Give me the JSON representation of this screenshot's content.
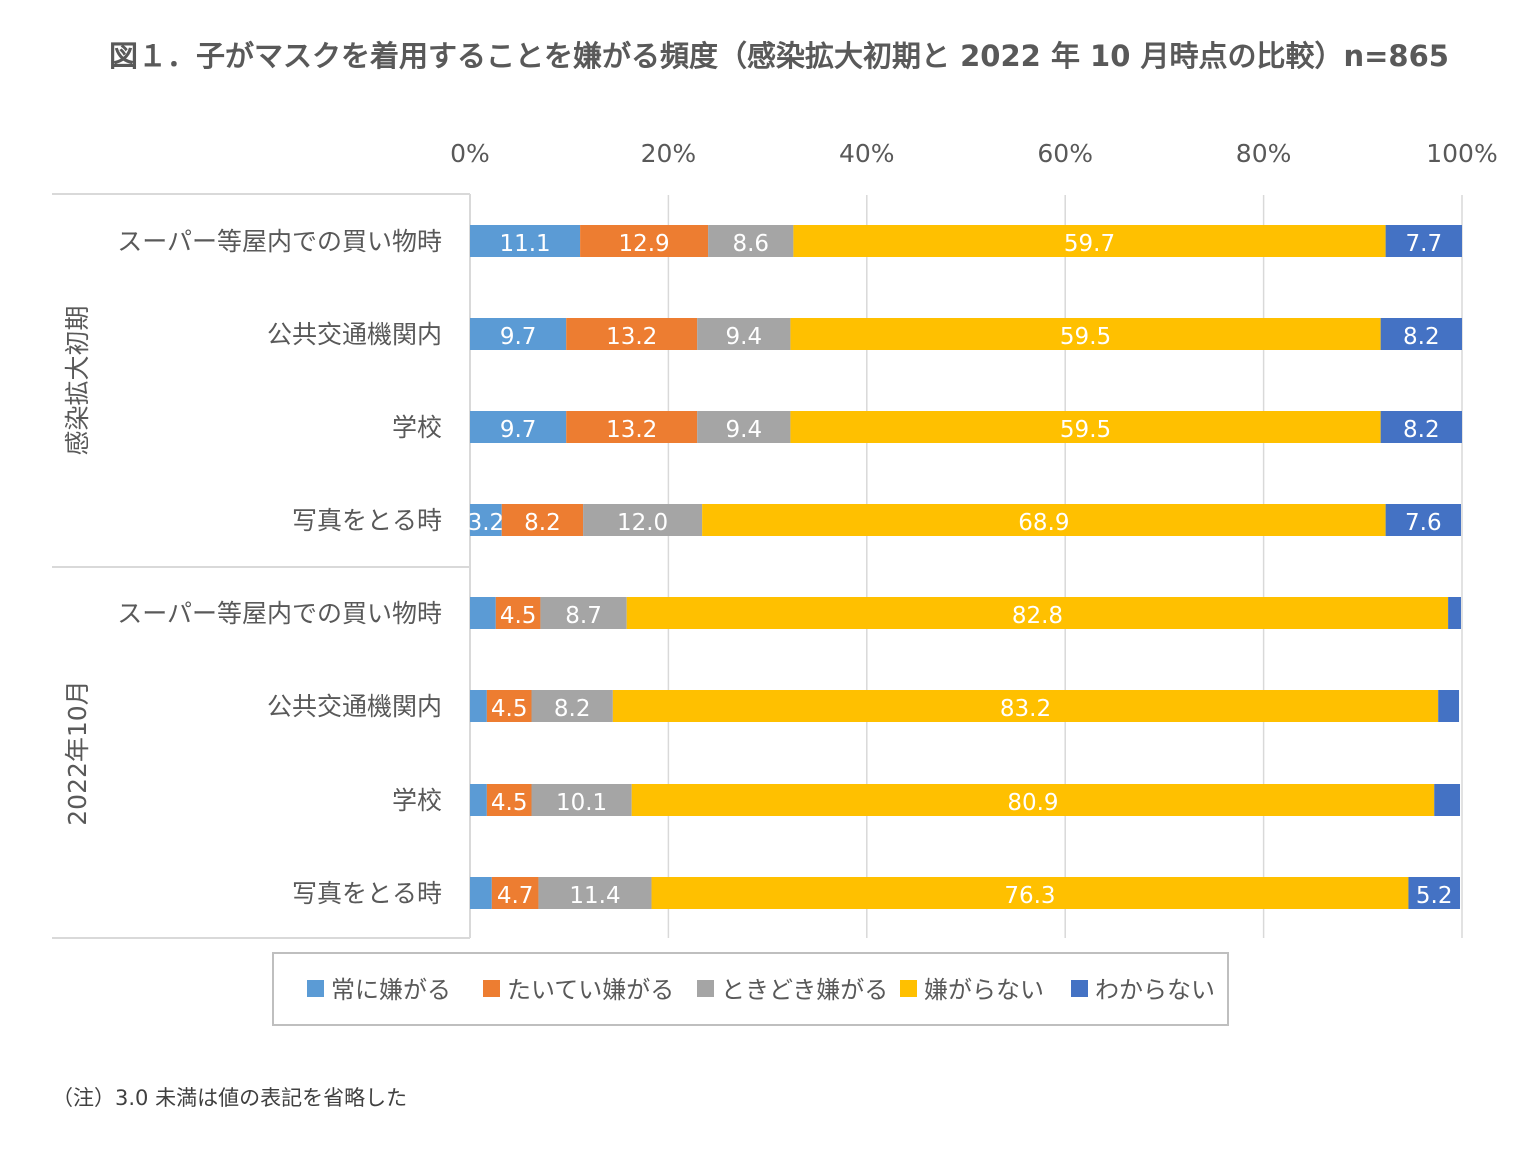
{
  "chart_data": {
    "type": "bar",
    "orientation": "horizontal",
    "stacked": "percent",
    "title": "図１．子がマスクを着用することを嫌がる頻度（感染拡大初期と 2022 年 10 月時点の比較）n=865",
    "footnote": "（注）3.0 未満は値の表記を省略した",
    "xlim": [
      0,
      100
    ],
    "x_ticks": [
      "0%",
      "20%",
      "40%",
      "60%",
      "80%",
      "100%"
    ],
    "grid": true,
    "legend_position": "bottom",
    "groups": [
      {
        "label": "感染拡大初期",
        "categories": [
          "スーパー等屋内での買い物時",
          "公共交通機関内",
          "学校",
          "写真をとる時"
        ]
      },
      {
        "label": "2022年10月",
        "categories": [
          "スーパー等屋内での買い物時",
          "公共交通機関内",
          "学校",
          "写真をとる時"
        ]
      }
    ],
    "series": [
      {
        "name": "常に嫌がる",
        "color": "#5B9BD5",
        "values": [
          11.1,
          9.7,
          9.7,
          3.2,
          2.6,
          1.7,
          1.7,
          2.2
        ]
      },
      {
        "name": "たいてい嫌がる",
        "color": "#ED7D31",
        "values": [
          12.9,
          13.2,
          13.2,
          8.2,
          4.5,
          4.5,
          4.5,
          4.7
        ]
      },
      {
        "name": "ときどき嫌がる",
        "color": "#A5A5A5",
        "values": [
          8.6,
          9.4,
          9.4,
          12.0,
          8.7,
          8.2,
          10.1,
          11.4
        ]
      },
      {
        "name": "嫌がらない",
        "color": "#FFC000",
        "values": [
          59.7,
          59.5,
          59.5,
          68.9,
          82.8,
          83.2,
          80.9,
          76.3
        ]
      },
      {
        "name": "わからない",
        "color": "#4472C4",
        "values": [
          7.7,
          8.2,
          8.2,
          7.6,
          1.3,
          2.1,
          2.6,
          5.2
        ]
      }
    ]
  }
}
